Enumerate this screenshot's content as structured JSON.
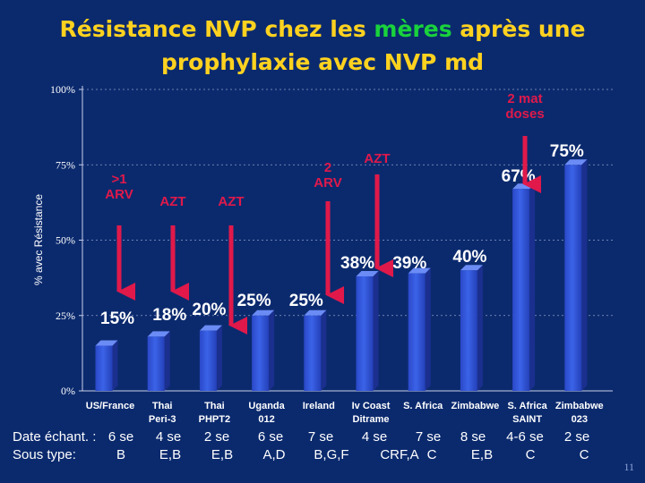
{
  "title": {
    "part1": "Résistance NVP chez les ",
    "highlight": "mères",
    "part2": " après une",
    "line2": "prophylaxie avec  NVP md"
  },
  "colors": {
    "background": "#0b2a6e",
    "bar": "#3b63e8",
    "title": "#ffd21f",
    "highlight": "#19d23c",
    "arrow": "#e0194a"
  },
  "chart_data": {
    "type": "bar",
    "ylabel": "% avec Résistance",
    "ylim": [
      0,
      100
    ],
    "yticks": [
      "0%",
      "25%",
      "50%",
      "75%",
      "100%"
    ],
    "categories": [
      [
        "US/France",
        ""
      ],
      [
        "Thai",
        "Peri-3"
      ],
      [
        "Thai",
        "PHPT2"
      ],
      [
        "Uganda",
        "012"
      ],
      [
        "Ireland",
        ""
      ],
      [
        "Iv Coast",
        "Ditrame"
      ],
      [
        "S. Africa",
        ""
      ],
      [
        "Zimbabwe",
        ""
      ],
      [
        "S. Africa",
        "SAINT"
      ],
      [
        "Zimbabwe",
        "023"
      ]
    ],
    "values": [
      15,
      18,
      20,
      25,
      25,
      38,
      39,
      40,
      67,
      75
    ],
    "data_labels": [
      "15%",
      "18%",
      "20%",
      "25%",
      "25%",
      "38%",
      "39%",
      "40%",
      "67%",
      "75%"
    ],
    "sample_dates": [
      "6 se",
      "4 se",
      "2 se",
      "6 se",
      "7 se",
      "4 se",
      "7 se",
      "8 se",
      "4-6 se",
      "2 se"
    ],
    "subtypes": [
      "B",
      "E,B",
      "E,B",
      "A,D",
      "B,G,F",
      "CRF,A",
      "C",
      "E,B",
      "C",
      "C"
    ],
    "annotations": [
      {
        "bar": 0,
        "text": [
          ">1",
          "ARV"
        ]
      },
      {
        "bar": 1,
        "text": [
          "AZT"
        ]
      },
      {
        "bar": 2,
        "text": [
          "AZT"
        ]
      },
      {
        "bar": 4,
        "text": [
          "2",
          "ARV"
        ]
      },
      {
        "bar": 5,
        "text": [
          "AZT"
        ]
      },
      {
        "bar": 8,
        "text": [
          "2 mat",
          "doses"
        ]
      }
    ]
  },
  "footer": {
    "date_label": "Date échant. :",
    "subtype_label": "Sous type:"
  },
  "slide_number": "11"
}
